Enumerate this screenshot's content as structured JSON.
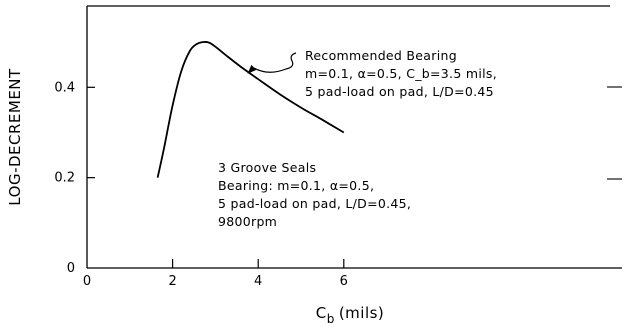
{
  "chart_data": {
    "type": "line",
    "title": "",
    "ylabel": "LOG-DECREMENT",
    "xlabel": {
      "main": "C",
      "subscript": "b",
      "suffix": "(mils)"
    },
    "xlim": [
      0,
      12.5
    ],
    "ylim": [
      0,
      0.58
    ],
    "x_ticks": [
      0,
      2,
      4,
      6
    ],
    "x_tick_labels": [
      "0",
      "2",
      "4",
      "6"
    ],
    "y_ticks": [
      0,
      0.2,
      0.4
    ],
    "y_tick_labels": [
      "0",
      "0.2",
      "0.4"
    ],
    "grid": false,
    "series": [
      {
        "x": [
          1.65,
          1.8,
          2.0,
          2.2,
          2.4,
          2.55,
          2.7,
          2.85,
          3.0,
          3.3,
          3.6,
          4.0,
          4.5,
          5.0,
          5.5,
          6.0
        ],
        "y": [
          0.2,
          0.265,
          0.36,
          0.435,
          0.48,
          0.495,
          0.5,
          0.499,
          0.49,
          0.467,
          0.445,
          0.418,
          0.385,
          0.355,
          0.328,
          0.3
        ]
      }
    ],
    "annotations": [
      {
        "id": "recommended-bearing",
        "lines": [
          "Recommended Bearing",
          "m=0.1, α=0.5, C_b=3.5 mils,",
          "5 pad-load on pad, L/D=0.45"
        ],
        "arrow_to": {
          "x": 3.75,
          "y": 0.43
        }
      },
      {
        "id": "groove-seals",
        "lines": [
          "3 Groove Seals",
          "Bearing:  m=0.1, α=0.5,",
          "5 pad-load on pad, L/D=0.45,",
          "9800rpm"
        ]
      }
    ]
  }
}
